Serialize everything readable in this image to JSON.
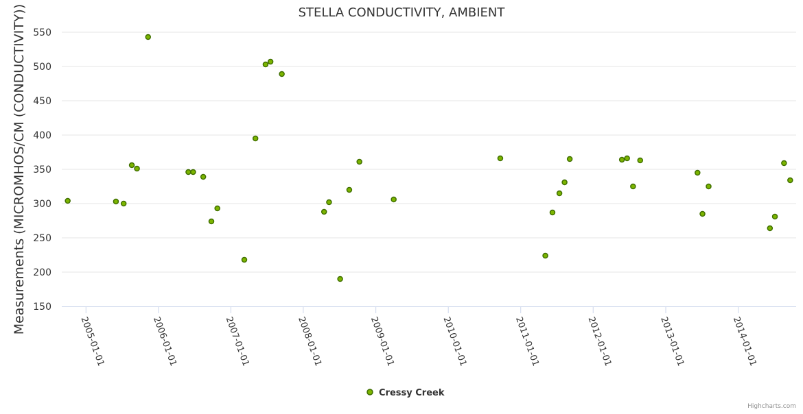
{
  "chart_data": {
    "type": "scatter",
    "title": "STELLA CONDUCTIVITY, AMBIENT",
    "ylabel": "Measurements (MICROMHOS/CM (CONDUCTIVITY))",
    "xlabel": "",
    "ylim": [
      150,
      550
    ],
    "yticks": [
      150,
      200,
      250,
      300,
      350,
      400,
      450,
      500,
      550
    ],
    "xlim": [
      "2004-09-01",
      "2014-10-20"
    ],
    "xticks": [
      "2005-01-01",
      "2006-01-01",
      "2007-01-01",
      "2008-01-01",
      "2009-01-01",
      "2010-01-01",
      "2011-01-01",
      "2012-01-01",
      "2013-01-01",
      "2014-01-01"
    ],
    "grid": true,
    "legend_position": "bottom-center",
    "color": "#7cb500",
    "series": [
      {
        "name": "Cressy Creek",
        "points": [
          {
            "x": "2004-10-01",
            "y": 304
          },
          {
            "x": "2005-06-01",
            "y": 303
          },
          {
            "x": "2005-07-10",
            "y": 300
          },
          {
            "x": "2005-08-20",
            "y": 356
          },
          {
            "x": "2005-09-15",
            "y": 351
          },
          {
            "x": "2005-11-10",
            "y": 543
          },
          {
            "x": "2006-06-01",
            "y": 346
          },
          {
            "x": "2006-06-25",
            "y": 346
          },
          {
            "x": "2006-08-15",
            "y": 339
          },
          {
            "x": "2006-09-25",
            "y": 274
          },
          {
            "x": "2006-10-25",
            "y": 293
          },
          {
            "x": "2007-03-10",
            "y": 218
          },
          {
            "x": "2007-05-05",
            "y": 395
          },
          {
            "x": "2007-06-25",
            "y": 503
          },
          {
            "x": "2007-07-20",
            "y": 507
          },
          {
            "x": "2007-09-15",
            "y": 489
          },
          {
            "x": "2008-04-15",
            "y": 288
          },
          {
            "x": "2008-05-10",
            "y": 302
          },
          {
            "x": "2008-07-05",
            "y": 190
          },
          {
            "x": "2008-08-20",
            "y": 320
          },
          {
            "x": "2008-10-10",
            "y": 361
          },
          {
            "x": "2009-04-01",
            "y": 306
          },
          {
            "x": "2010-09-20",
            "y": 366
          },
          {
            "x": "2011-05-05",
            "y": 224
          },
          {
            "x": "2011-06-10",
            "y": 287
          },
          {
            "x": "2011-07-15",
            "y": 315
          },
          {
            "x": "2011-08-10",
            "y": 331
          },
          {
            "x": "2011-09-05",
            "y": 365
          },
          {
            "x": "2012-05-25",
            "y": 364
          },
          {
            "x": "2012-06-20",
            "y": 366
          },
          {
            "x": "2012-07-20",
            "y": 325
          },
          {
            "x": "2012-08-25",
            "y": 363
          },
          {
            "x": "2013-06-10",
            "y": 345
          },
          {
            "x": "2013-07-05",
            "y": 285
          },
          {
            "x": "2013-08-05",
            "y": 325
          },
          {
            "x": "2014-06-10",
            "y": 264
          },
          {
            "x": "2014-07-05",
            "y": 281
          },
          {
            "x": "2014-08-20",
            "y": 359
          },
          {
            "x": "2014-09-20",
            "y": 334
          }
        ]
      }
    ]
  },
  "credits": "Highcharts.com"
}
